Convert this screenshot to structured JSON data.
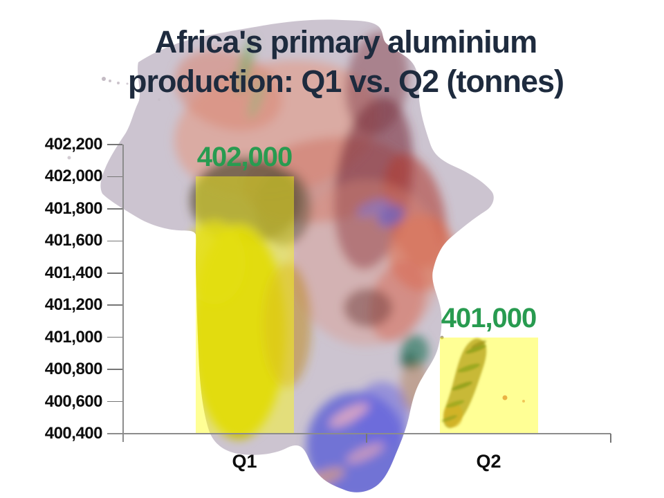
{
  "title": {
    "line1": "Africa's primary aluminium",
    "line2": "production: Q1 vs. Q2 (tonnes)"
  },
  "chart_data": {
    "type": "bar",
    "title": "Africa's primary aluminium production: Q1 vs. Q2 (tonnes)",
    "categories": [
      "Q1",
      "Q2"
    ],
    "values": [
      402000,
      401000
    ],
    "value_labels": [
      "402,000",
      "401,000"
    ],
    "xlabel": "",
    "ylabel": "",
    "ylim": [
      400400,
      402200
    ],
    "y_tick_step": 200,
    "y_tick_values": [
      402200,
      402000,
      401800,
      401600,
      401400,
      401200,
      401000,
      400800,
      400600,
      400400
    ],
    "y_tick_labels": [
      "402,200",
      "402,000",
      "401,800",
      "401,600",
      "401,400",
      "401,200",
      "401,000",
      "400,800",
      "400,600",
      "400,400"
    ],
    "grid": false,
    "legend": false,
    "bar_color": "rgba(255,255,20,0.45)",
    "value_label_color": "#289b50",
    "tick_label_color": "#0d0d0d",
    "axis_color": "#8c8c8c",
    "background": "abstract painted map of Africa with Madagascar"
  }
}
